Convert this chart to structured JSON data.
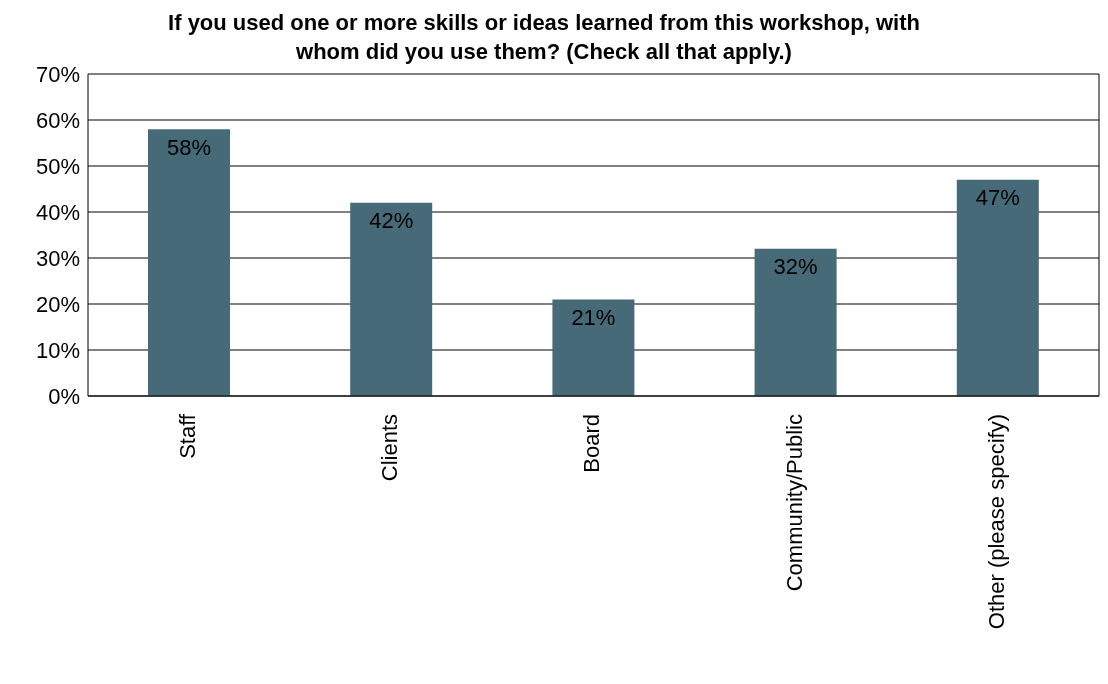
{
  "chart_data": {
    "type": "bar",
    "title": "If you used one or more skills or ideas learned from this workshop, with whom did you use them? (Check all that apply.)",
    "categories": [
      "Staff",
      "Clients",
      "Board",
      "Community/Public",
      "Other (please specify)"
    ],
    "values": [
      58,
      42,
      21,
      32,
      47
    ],
    "value_labels": [
      "58%",
      "42%",
      "21%",
      "32%",
      "47%"
    ],
    "color": "#466a78",
    "ylim": [
      0,
      70
    ],
    "yticks": [
      {
        "value": 0,
        "label": "0%"
      },
      {
        "value": 10,
        "label": "10%"
      },
      {
        "value": 20,
        "label": "20%"
      },
      {
        "value": 30,
        "label": "30%"
      },
      {
        "value": 40,
        "label": "40%"
      },
      {
        "value": 50,
        "label": "50%"
      },
      {
        "value": 60,
        "label": "60%"
      },
      {
        "value": 70,
        "label": "70%"
      }
    ],
    "grid": "y"
  }
}
